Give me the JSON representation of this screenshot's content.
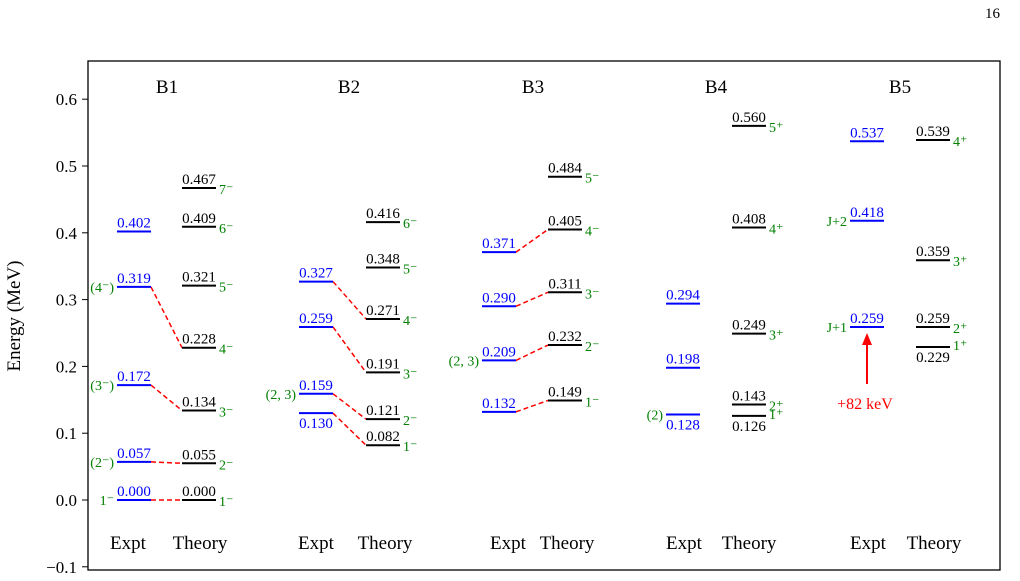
{
  "page_number": "16",
  "chart_data": {
    "type": "level-scheme",
    "ylabel": "Energy (MeV)",
    "ylim": [
      -0.1,
      0.65
    ],
    "yticks": [
      -0.1,
      0.0,
      0.1,
      0.2,
      0.3,
      0.4,
      0.5,
      0.6
    ],
    "ytick_labels": [
      "−0.1",
      "0.0",
      "0.1",
      "0.2",
      "0.3",
      "0.4",
      "0.5",
      "0.6"
    ],
    "colors": {
      "expt": "#0000ff",
      "theory": "#000000",
      "spin": "#008000",
      "link": "#ff0000",
      "annotation": "#ff0000"
    },
    "column_labels": {
      "expt": "Expt",
      "theory": "Theory"
    },
    "bands": [
      {
        "name": "B1",
        "expt": [
          {
            "energy": 0.0,
            "label": "0.000",
            "spin": "1⁻"
          },
          {
            "energy": 0.057,
            "label": "0.057",
            "spin": "(2⁻)"
          },
          {
            "energy": 0.172,
            "label": "0.172",
            "spin": "(3⁻)"
          },
          {
            "energy": 0.319,
            "label": "0.319",
            "spin": "(4⁻)"
          },
          {
            "energy": 0.402,
            "label": "0.402",
            "spin": ""
          }
        ],
        "theory": [
          {
            "energy": 0.0,
            "label": "0.000",
            "spin": "1⁻"
          },
          {
            "energy": 0.055,
            "label": "0.055",
            "spin": "2⁻"
          },
          {
            "energy": 0.134,
            "label": "0.134",
            "spin": "3⁻"
          },
          {
            "energy": 0.228,
            "label": "0.228",
            "spin": "4⁻"
          },
          {
            "energy": 0.321,
            "label": "0.321",
            "spin": "5⁻"
          },
          {
            "energy": 0.409,
            "label": "0.409",
            "spin": "6⁻"
          },
          {
            "energy": 0.467,
            "label": "0.467",
            "spin": "7⁻"
          }
        ],
        "links": [
          [
            0.0,
            0.0
          ],
          [
            0.057,
            0.055
          ],
          [
            0.172,
            0.134
          ],
          [
            0.319,
            0.228
          ]
        ]
      },
      {
        "name": "B2",
        "expt": [
          {
            "energy": 0.13,
            "label": "0.130",
            "spin": "",
            "below": true
          },
          {
            "energy": 0.159,
            "label": "0.159",
            "spin": "(2, 3)"
          },
          {
            "energy": 0.259,
            "label": "0.259",
            "spin": ""
          },
          {
            "energy": 0.327,
            "label": "0.327",
            "spin": ""
          }
        ],
        "theory": [
          {
            "energy": 0.082,
            "label": "0.082",
            "spin": "1⁻"
          },
          {
            "energy": 0.121,
            "label": "0.121",
            "spin": "2⁻"
          },
          {
            "energy": 0.191,
            "label": "0.191",
            "spin": "3⁻"
          },
          {
            "energy": 0.271,
            "label": "0.271",
            "spin": "4⁻"
          },
          {
            "energy": 0.348,
            "label": "0.348",
            "spin": "5⁻"
          },
          {
            "energy": 0.416,
            "label": "0.416",
            "spin": "6⁻"
          }
        ],
        "links": [
          [
            0.13,
            0.082
          ],
          [
            0.159,
            0.121
          ],
          [
            0.259,
            0.191
          ],
          [
            0.327,
            0.271
          ]
        ]
      },
      {
        "name": "B3",
        "expt": [
          {
            "energy": 0.132,
            "label": "0.132",
            "spin": ""
          },
          {
            "energy": 0.209,
            "label": "0.209",
            "spin": "(2, 3)"
          },
          {
            "energy": 0.29,
            "label": "0.290",
            "spin": ""
          },
          {
            "energy": 0.371,
            "label": "0.371",
            "spin": ""
          }
        ],
        "theory": [
          {
            "energy": 0.149,
            "label": "0.149",
            "spin": "1⁻"
          },
          {
            "energy": 0.232,
            "label": "0.232",
            "spin": "2⁻"
          },
          {
            "energy": 0.311,
            "label": "0.311",
            "spin": "3⁻"
          },
          {
            "energy": 0.405,
            "label": "0.405",
            "spin": "4⁻"
          },
          {
            "energy": 0.484,
            "label": "0.484",
            "spin": "5⁻"
          }
        ],
        "links": [
          [
            0.132,
            0.149
          ],
          [
            0.209,
            0.232
          ],
          [
            0.29,
            0.311
          ],
          [
            0.371,
            0.405
          ]
        ]
      },
      {
        "name": "B4",
        "expt": [
          {
            "energy": 0.128,
            "label": "0.128",
            "spin": "(2)",
            "below": true
          },
          {
            "energy": 0.198,
            "label": "0.198",
            "spin": ""
          },
          {
            "energy": 0.294,
            "label": "0.294",
            "spin": ""
          }
        ],
        "theory": [
          {
            "energy": 0.126,
            "label": "0.126",
            "spin": "1⁺",
            "below": true
          },
          {
            "energy": 0.143,
            "label": "0.143",
            "spin": "2⁺"
          },
          {
            "energy": 0.249,
            "label": "0.249",
            "spin": "3⁺"
          },
          {
            "energy": 0.408,
            "label": "0.408",
            "spin": "4⁺"
          },
          {
            "energy": 0.56,
            "label": "0.560",
            "spin": "5⁺"
          }
        ],
        "links": []
      },
      {
        "name": "B5",
        "expt": [
          {
            "energy": 0.259,
            "label": "0.259",
            "spin": "J+1"
          },
          {
            "energy": 0.418,
            "label": "0.418",
            "spin": "J+2"
          },
          {
            "energy": 0.537,
            "label": "0.537",
            "spin": ""
          }
        ],
        "theory": [
          {
            "energy": 0.229,
            "label": "0.229",
            "spin": "1⁺",
            "below": true
          },
          {
            "energy": 0.259,
            "label": "0.259",
            "spin": "2⁺"
          },
          {
            "energy": 0.359,
            "label": "0.359",
            "spin": "3⁺"
          },
          {
            "energy": 0.539,
            "label": "0.539",
            "spin": "4⁺"
          }
        ],
        "links": [],
        "annotation": {
          "text": "+82 keV",
          "arrow_to_energy": 0.259
        }
      }
    ]
  }
}
